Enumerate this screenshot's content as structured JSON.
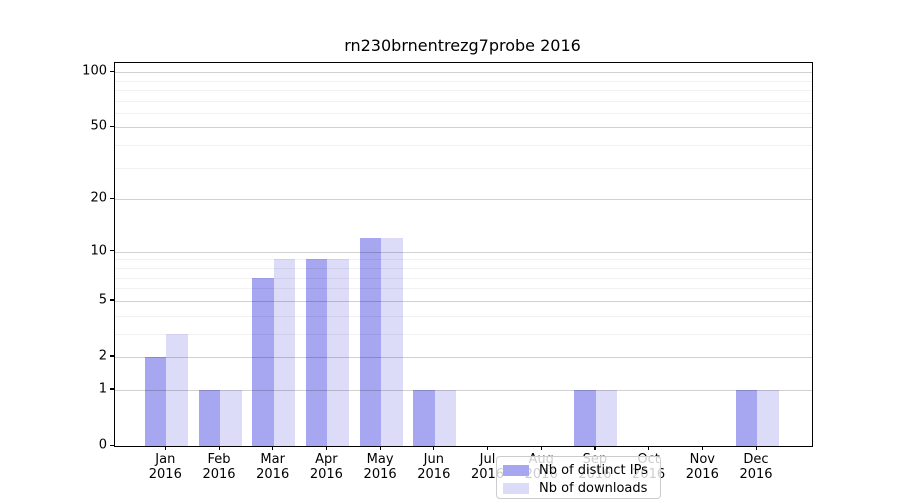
{
  "chart_data": {
    "type": "bar",
    "title": "rn230brnentrezg7probe 2016",
    "categories": [
      {
        "month": "Jan",
        "year": "2016"
      },
      {
        "month": "Feb",
        "year": "2016"
      },
      {
        "month": "Mar",
        "year": "2016"
      },
      {
        "month": "Apr",
        "year": "2016"
      },
      {
        "month": "May",
        "year": "2016"
      },
      {
        "month": "Jun",
        "year": "2016"
      },
      {
        "month": "Jul",
        "year": "2016"
      },
      {
        "month": "Aug",
        "year": "2016"
      },
      {
        "month": "Sep",
        "year": "2016"
      },
      {
        "month": "Oct",
        "year": "2016"
      },
      {
        "month": "Nov",
        "year": "2016"
      },
      {
        "month": "Dec",
        "year": "2016"
      }
    ],
    "series": [
      {
        "name": "Nb of distinct IPs",
        "color": "#a6a6f1",
        "values": [
          2,
          1,
          7,
          9,
          12,
          1,
          0,
          0,
          1,
          0,
          0,
          1
        ]
      },
      {
        "name": "Nb of downloads",
        "color": "#dcdcf9",
        "values": [
          3,
          1,
          9,
          9,
          12,
          1,
          0,
          0,
          1,
          0,
          0,
          1
        ]
      }
    ],
    "y_axis": {
      "scale": "log1p",
      "ticks": [
        0,
        1,
        2,
        5,
        10,
        20,
        50,
        100
      ],
      "minor_ticks": [
        3,
        4,
        6,
        7,
        8,
        9,
        30,
        40,
        60,
        70,
        80,
        90
      ],
      "ylim": [
        0,
        112
      ]
    },
    "xlabel": "",
    "ylabel": "",
    "grid": "on",
    "legend_position": "lower center-left"
  }
}
